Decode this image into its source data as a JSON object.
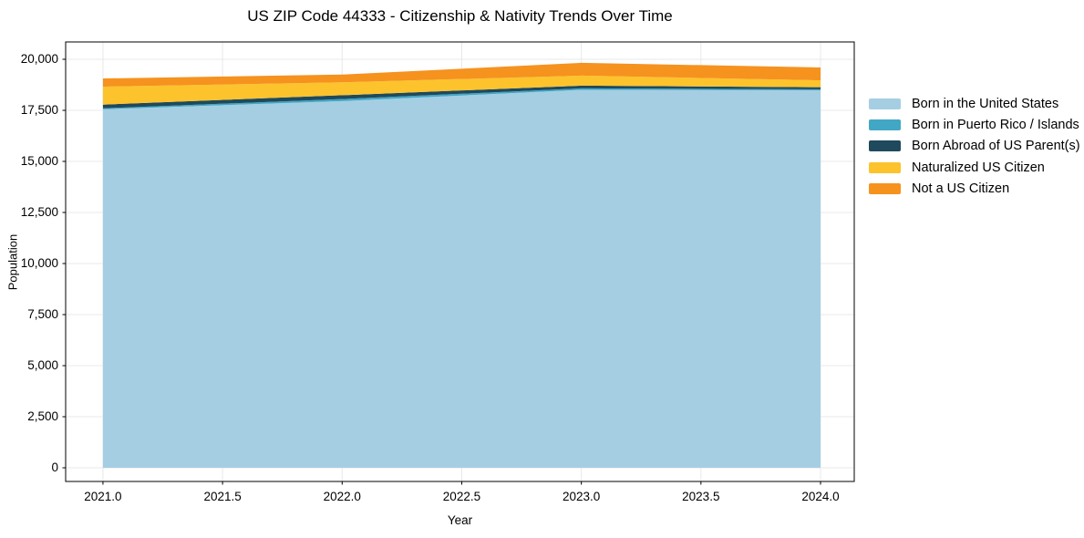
{
  "title": "US ZIP Code 44333 - Citizenship & Nativity Trends Over Time",
  "chart_data": {
    "type": "area",
    "stacked": true,
    "title": "US ZIP Code 44333 - Citizenship & Nativity Trends Over Time",
    "xlabel": "Year",
    "ylabel": "Population",
    "x": [
      2021,
      2022,
      2023,
      2024
    ],
    "series": [
      {
        "name": "Born in the United States",
        "color": "#a5cee3",
        "values": [
          17550,
          17950,
          18500,
          18480
        ]
      },
      {
        "name": "Born in Puerto Rico / Islands",
        "color": "#41a7c5",
        "values": [
          50,
          100,
          75,
          50
        ]
      },
      {
        "name": "Born Abroad of US Parent(s)",
        "color": "#1f495c",
        "values": [
          180,
          190,
          135,
          100
        ]
      },
      {
        "name": "Naturalized US Citizen",
        "color": "#fcc32d",
        "values": [
          880,
          630,
          490,
          340
        ]
      },
      {
        "name": "Not a US Citizen",
        "color": "#f6921e",
        "values": [
          400,
          380,
          625,
          630
        ]
      }
    ],
    "stack_totals": [
      19060,
      19250,
      19825,
      19600
    ],
    "x_ticks": {
      "values": [
        2021.0,
        2021.5,
        2022.0,
        2022.5,
        2023.0,
        2023.5,
        2024.0
      ],
      "labels": [
        "2021.0",
        "2021.5",
        "2022.0",
        "2022.5",
        "2023.0",
        "2023.5",
        "2024.0"
      ]
    },
    "y_ticks": {
      "values": [
        0,
        2500,
        5000,
        7500,
        10000,
        12500,
        15000,
        17500,
        20000
      ],
      "labels": [
        "0",
        "2,500",
        "5,000",
        "7,500",
        "10,000",
        "12,500",
        "15,000",
        "17,500",
        "20,000"
      ]
    },
    "xlim": [
      2020.844,
      2024.141
    ],
    "ylim": [
      -670,
      20848
    ],
    "grid": true,
    "grid_color": "#e8e8e8",
    "border_color": "#000000",
    "legend_position": "right-outside"
  }
}
